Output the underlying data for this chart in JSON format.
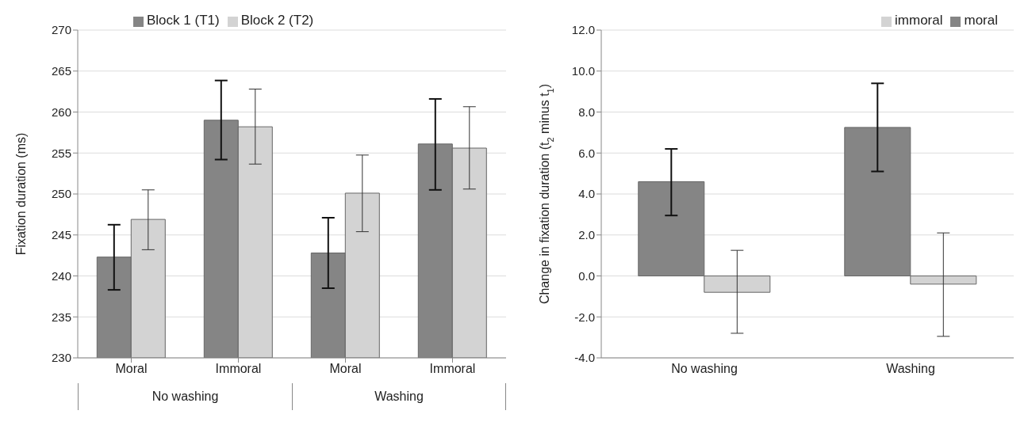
{
  "chart_data": [
    {
      "type": "bar",
      "ylabel": "Fixation duration (ms)",
      "categories": [
        "Moral",
        "Immoral",
        "Moral",
        "Immoral"
      ],
      "annotations": [
        "No washing",
        "Washing"
      ],
      "series": [
        {
          "name": "Block 1 (T1)",
          "color": "#858585",
          "values": [
            242.3,
            259.0,
            242.8,
            256.1
          ],
          "errors": [
            [
              238.3,
              246.25
            ],
            [
              254.2,
              263.85
            ],
            [
              238.5,
              247.1
            ],
            [
              250.5,
              261.6
            ]
          ]
        },
        {
          "name": "Block 2 (T2)",
          "color": "#d3d3d3",
          "values": [
            246.9,
            258.2,
            250.1,
            255.6
          ],
          "errors": [
            [
              243.2,
              250.5
            ],
            [
              253.65,
              262.8
            ],
            [
              245.4,
              254.75
            ],
            [
              250.6,
              260.65
            ]
          ]
        }
      ],
      "ylim": [
        230,
        270
      ],
      "yticks": [
        230,
        235,
        240,
        245,
        250,
        255,
        260,
        265,
        270
      ],
      "grid": "y",
      "legend": "top"
    },
    {
      "type": "bar",
      "ylabel": "Change in fixation duration (t$_{2}$ minus t$_{1}$)",
      "categories": [
        "No washing",
        "Washing"
      ],
      "series": [
        {
          "name": "moral",
          "color": "#858585",
          "values": [
            4.6,
            7.25
          ],
          "errors": [
            [
              2.95,
              6.2
            ],
            [
              5.1,
              9.4
            ]
          ]
        },
        {
          "name": "immoral",
          "color": "#d3d3d3",
          "values": [
            -0.8,
            -0.4
          ],
          "errors": [
            [
              -2.8,
              1.25
            ],
            [
              -2.95,
              2.1
            ]
          ]
        }
      ],
      "ylim": [
        -4,
        12
      ],
      "yticks": [
        {
          "value": -4,
          "label": "-4.0"
        },
        {
          "value": -2,
          "label": "-2.0"
        },
        {
          "value": 0,
          "label": "0.0"
        },
        {
          "value": 2,
          "label": "2.0"
        },
        {
          "value": 4,
          "label": "4.0"
        },
        {
          "value": 6,
          "label": "6.0"
        },
        {
          "value": 8,
          "label": "8.0"
        },
        {
          "value": 10,
          "label": "10.0"
        },
        {
          "value": 12,
          "label": "12.0"
        }
      ],
      "grid": "y",
      "legend": "top right"
    }
  ]
}
